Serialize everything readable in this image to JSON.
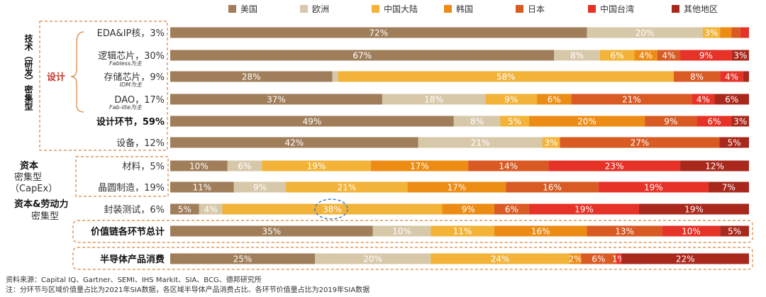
{
  "chart_data": {
    "type": "bar",
    "orientation": "horizontal",
    "stacked": "100%",
    "series_names": [
      "美国",
      "欧洲",
      "中国大陆",
      "韩国",
      "日本",
      "中国台湾",
      "其他地区"
    ],
    "colors": [
      "#a07e5a",
      "#d8c8aa",
      "#f2b338",
      "#ed8c14",
      "#d95a23",
      "#e63227",
      "#a9281c"
    ],
    "rows": [
      {
        "label": "EDA&IP核，3%",
        "bold": false,
        "values": [
          72,
          20,
          3,
          2,
          1.5,
          1.5,
          0
        ],
        "labels": [
          "72%",
          "20%",
          "3%",
          "",
          "",
          "",
          ""
        ]
      },
      {
        "label": "逻辑芯片，30%",
        "sub": "Fabless为主",
        "bold": false,
        "values": [
          67,
          8,
          6,
          4,
          4,
          9,
          3
        ],
        "labels": [
          "67%",
          "8%",
          "6%",
          "4%",
          "4%",
          "9%",
          "3%"
        ]
      },
      {
        "label": "存储芯片，9%",
        "sub": "IDM为主",
        "bold": false,
        "values": [
          28,
          1,
          58,
          0,
          8,
          4,
          1
        ],
        "labels": [
          "28%",
          "",
          "58%",
          "",
          "8%",
          "4%",
          ""
        ]
      },
      {
        "label": "DAO，17%",
        "sub": "Fab-lite为主",
        "bold": false,
        "values": [
          37,
          18,
          9,
          6,
          21,
          4,
          6
        ],
        "labels": [
          "37%",
          "18%",
          "9%",
          "6%",
          "21%",
          "4%",
          "6%"
        ]
      },
      {
        "label": "设计环节，59%",
        "bold": true,
        "values": [
          49,
          8,
          5,
          20,
          9,
          6,
          3
        ],
        "labels": [
          "49%",
          "8%",
          "5%",
          "20%",
          "9%",
          "6%",
          "3%"
        ]
      },
      {
        "label": "设备，12%",
        "bold": false,
        "values": [
          42,
          21,
          3,
          0,
          27,
          0,
          5
        ],
        "labels": [
          "42%",
          "21%",
          "3%",
          "",
          "27%",
          "",
          "5%"
        ]
      },
      {
        "label": "材料，5%",
        "bold": false,
        "values": [
          10,
          6,
          19,
          17,
          14,
          23,
          12
        ],
        "labels": [
          "10%",
          "6%",
          "19%",
          "17%",
          "14%",
          "23%",
          "12%"
        ]
      },
      {
        "label": "晶圆制造，19%",
        "bold": false,
        "values": [
          11,
          9,
          21,
          17,
          16,
          19,
          7
        ],
        "labels": [
          "11%",
          "9%",
          "21%",
          "17%",
          "16%",
          "19%",
          "7%"
        ]
      },
      {
        "label": "封装测试，6%",
        "bold": false,
        "values": [
          5,
          4,
          38,
          9,
          6,
          19,
          19
        ],
        "labels": [
          "5%",
          "4%",
          "38%",
          "9%",
          "6%",
          "19%",
          "19%"
        ]
      },
      {
        "label": "价值链各环节总计",
        "bold": true,
        "values": [
          35,
          10,
          11,
          16,
          13,
          10,
          5
        ],
        "labels": [
          "35%",
          "10%",
          "11%",
          "16%",
          "13%",
          "10%",
          "5%"
        ]
      },
      {
        "label": "半导体产品消费",
        "bold": true,
        "values": [
          25,
          20,
          24,
          2,
          6,
          1,
          22
        ],
        "labels": [
          "25%",
          "20%",
          "24%",
          "2%",
          "6%",
          "1%",
          "22%"
        ]
      }
    ],
    "xlim": [
      0,
      100
    ],
    "legend_position": "top"
  },
  "groups": {
    "design": "设计",
    "tech_intensive": "技术（研发）密集型",
    "capital": "资本",
    "capital_sub1": "密集型",
    "capital_sub2": "（CapEx）",
    "labor": "资本&劳动力",
    "labor_sub": "密集型"
  },
  "footer": {
    "source": "资料来源：Capital IQ、Gartner、SEMI、IHS Markit、SIA、BCG、德邦研究所",
    "note": "注：分环节与区域价值量占比为2021年SIA数据，各区域半导体产品消费占比、各环节价值量占比为2019年SIA数据"
  }
}
